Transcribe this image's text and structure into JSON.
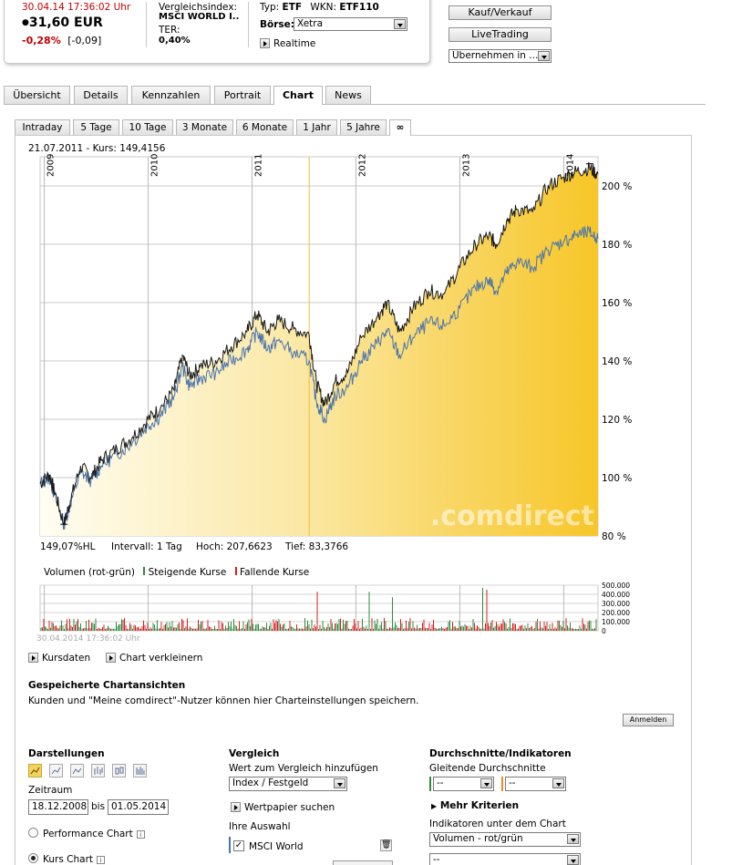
{
  "header": {
    "timestamp": "30.04.14  17:36:02 Uhr",
    "price": "31,60 EUR",
    "change_pct": "-0,28%",
    "change_abs": "[-0,09]",
    "vergleich_label": "Vergleichsindex:",
    "vergleich_value": "MSCI WORLD I..",
    "ter_label": "TER:",
    "ter_value": "0,40%",
    "typ_label": "Typ:",
    "typ_value": "ETF",
    "wkn_label": "WKN:",
    "wkn_value": "ETF110",
    "boerse_label": "Börse:",
    "boerse_value": "Xetra",
    "realtime_label": "Realtime",
    "kauf_button": "Kauf/Verkauf",
    "livetrading_button": "LiveTrading",
    "uebernehmen_value": "Übernehmen in ..."
  },
  "main_tabs": [
    "Übersicht",
    "Details",
    "Kennzahlen",
    "Portrait",
    "Chart",
    "News"
  ],
  "main_tab_active": "Chart",
  "range_tabs": [
    "Intraday",
    "5 Tage",
    "10 Tage",
    "3 Monate",
    "6 Monate",
    "1 Jahr",
    "5 Jahre",
    "∞"
  ],
  "range_tab_active": "∞",
  "chart_info": {
    "cursor_date": "21.07.2011",
    "cursor_sep": " - ",
    "cursor_price": "Kurs: 149,4156",
    "hl_label": "149,07%HL",
    "intervall": "Intervall: 1 Tag",
    "hoch": "Hoch: 207,6623",
    "tief": "Tief: 83,3766",
    "watermark_a": ".com",
    "watermark_b": "direct",
    "volume_title": "Volumen (rot-grün)",
    "volume_up": "Steigende Kurse",
    "volume_down": "Fallende Kurse",
    "footer_date": "30.04.2014 17:36:02 Uhr",
    "colors": {
      "fund": "#1a1a1a",
      "index": "#4b74ad",
      "area": "#f7c932",
      "up": "#2e8b3e",
      "down": "#d02020",
      "cursor": "#f0c040"
    }
  },
  "chart_data": {
    "type": "line",
    "x_labels": [
      "2009",
      "2010",
      "2011",
      "2012",
      "2013",
      "2014"
    ],
    "y_ticks": [
      "80 %",
      "100 %",
      "120 %",
      "140 %",
      "160 %",
      "180 %",
      "200 %"
    ],
    "ylim": [
      80,
      210
    ],
    "volume_ticks": [
      "500.000",
      "400.000",
      "300.000",
      "200.000",
      "100.000",
      "0"
    ],
    "series": [
      {
        "name": "Kurs",
        "points": [
          [
            2008.96,
            98
          ],
          [
            2009.05,
            101
          ],
          [
            2009.1,
            95
          ],
          [
            2009.19,
            84
          ],
          [
            2009.25,
            92
          ],
          [
            2009.35,
            104
          ],
          [
            2009.45,
            100
          ],
          [
            2009.55,
            106
          ],
          [
            2009.7,
            110
          ],
          [
            2009.85,
            114
          ],
          [
            2010.0,
            120
          ],
          [
            2010.12,
            124
          ],
          [
            2010.25,
            130
          ],
          [
            2010.33,
            142
          ],
          [
            2010.4,
            135
          ],
          [
            2010.5,
            138
          ],
          [
            2010.65,
            140
          ],
          [
            2010.8,
            145
          ],
          [
            2010.95,
            150
          ],
          [
            2011.05,
            156
          ],
          [
            2011.15,
            150
          ],
          [
            2011.25,
            154
          ],
          [
            2011.4,
            151
          ],
          [
            2011.55,
            149
          ],
          [
            2011.62,
            132
          ],
          [
            2011.7,
            125
          ],
          [
            2011.8,
            133
          ],
          [
            2011.92,
            136
          ],
          [
            2012.05,
            148
          ],
          [
            2012.2,
            155
          ],
          [
            2012.3,
            160
          ],
          [
            2012.42,
            150
          ],
          [
            2012.55,
            158
          ],
          [
            2012.7,
            164
          ],
          [
            2012.85,
            163
          ],
          [
            2013.0,
            172
          ],
          [
            2013.15,
            180
          ],
          [
            2013.28,
            183
          ],
          [
            2013.35,
            180
          ],
          [
            2013.45,
            188
          ],
          [
            2013.55,
            192
          ],
          [
            2013.7,
            191
          ],
          [
            2013.85,
            200
          ],
          [
            2014.0,
            203
          ],
          [
            2014.12,
            205
          ],
          [
            2014.25,
            206
          ],
          [
            2014.33,
            204
          ]
        ]
      },
      {
        "name": "MSCI World",
        "points": [
          [
            2008.96,
            98
          ],
          [
            2009.05,
            100
          ],
          [
            2009.1,
            94
          ],
          [
            2009.19,
            84
          ],
          [
            2009.25,
            91
          ],
          [
            2009.35,
            102
          ],
          [
            2009.45,
            99
          ],
          [
            2009.55,
            104
          ],
          [
            2009.7,
            108
          ],
          [
            2009.85,
            112
          ],
          [
            2010.0,
            118
          ],
          [
            2010.12,
            121
          ],
          [
            2010.25,
            128
          ],
          [
            2010.33,
            138
          ],
          [
            2010.4,
            131
          ],
          [
            2010.5,
            134
          ],
          [
            2010.65,
            136
          ],
          [
            2010.8,
            140
          ],
          [
            2010.95,
            144
          ],
          [
            2011.05,
            150
          ],
          [
            2011.15,
            144
          ],
          [
            2011.25,
            147
          ],
          [
            2011.4,
            143
          ],
          [
            2011.55,
            140
          ],
          [
            2011.62,
            126
          ],
          [
            2011.7,
            120
          ],
          [
            2011.8,
            128
          ],
          [
            2011.92,
            131
          ],
          [
            2012.05,
            140
          ],
          [
            2012.2,
            146
          ],
          [
            2012.3,
            150
          ],
          [
            2012.42,
            142
          ],
          [
            2012.55,
            148
          ],
          [
            2012.7,
            153
          ],
          [
            2012.85,
            152
          ],
          [
            2013.0,
            158
          ],
          [
            2013.15,
            165
          ],
          [
            2013.28,
            168
          ],
          [
            2013.35,
            164
          ],
          [
            2013.45,
            170
          ],
          [
            2013.55,
            174
          ],
          [
            2013.7,
            172
          ],
          [
            2013.85,
            178
          ],
          [
            2014.0,
            181
          ],
          [
            2014.12,
            183
          ],
          [
            2014.25,
            184
          ],
          [
            2014.33,
            182
          ]
        ]
      }
    ]
  },
  "links": {
    "kursdaten": "Kursdaten",
    "verkleinern": "Chart verkleinern"
  },
  "saved": {
    "title": "Gespeicherte Chartansichten",
    "text": "Kunden und \"Meine comdirect\"-Nutzer können hier Charteinstellungen speichern.",
    "anmelden": "Anmelden"
  },
  "darstellungen": {
    "title": "Darstellungen",
    "zeitraum_label": "Zeitraum",
    "from": "18.12.2008",
    "bis": "bis",
    "to": "01.05.2014",
    "performance_chart": "Performance Chart",
    "kurs_chart": "Kurs Chart",
    "icons": [
      "area-chart-icon",
      "line-chart-icon",
      "mountain-chart-icon",
      "ohlc-chart-icon",
      "candle-chart-icon",
      "bar-chart-icon"
    ]
  },
  "vergleich": {
    "title": "Vergleich",
    "add_label": "Wert zum Vergleich hinzufügen",
    "select_value": "Index / Festgeld",
    "wertpapier_suchen": "Wertpapier suchen",
    "auswahl_label": "Ihre Auswahl",
    "msci_world": "MSCI World"
  },
  "indikatoren": {
    "title": "Durchschnitte/Indikatoren",
    "gleitende": "Gleitende Durchschnitte",
    "gd1": "--",
    "gd2": "--",
    "mehr": "Mehr Kriterien",
    "unter_label": "Indikatoren unter dem Chart",
    "unter_value": "Volumen - rot/grün",
    "unter2": "--"
  }
}
